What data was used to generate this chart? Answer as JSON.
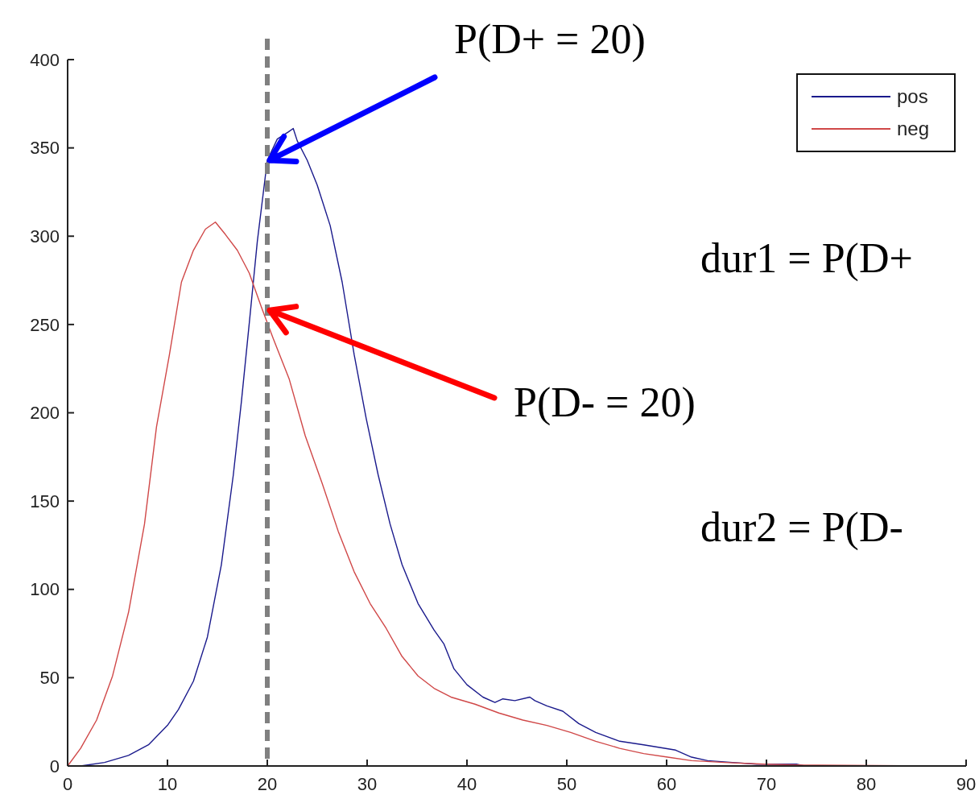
{
  "chart_data": {
    "type": "line",
    "xlim": [
      0,
      90
    ],
    "xticks": [
      0,
      10,
      20,
      30,
      40,
      50,
      60,
      70,
      80,
      90
    ],
    "ylim": [
      0,
      400
    ],
    "yticks": [
      0,
      50,
      100,
      150,
      200,
      250,
      300,
      350,
      400
    ],
    "grid": false,
    "legend": "top right",
    "marker": "none",
    "line_style": "solid",
    "series": [
      {
        "name": "pos",
        "color": "#1a1a8c",
        "x": [
          0,
          1.3,
          3.7,
          6.1,
          8.1,
          10,
          11.1,
          12.6,
          14,
          15.4,
          16.6,
          17.4,
          18.2,
          19,
          20,
          21,
          22.1,
          22.6,
          23,
          24,
          25,
          26.3,
          27.5,
          28.7,
          29.9,
          31.1,
          32.3,
          33.5,
          35.1,
          36.7,
          37.7,
          38.7,
          40,
          41.6,
          42.8,
          43.6,
          44.8,
          46.3,
          46.8,
          48,
          49.6,
          51.2,
          52.9,
          55.3,
          57.7,
          60.9,
          62.5,
          64.1,
          66.6,
          69,
          73,
          73.8,
          86.7
        ],
        "values": [
          0,
          0,
          2,
          6,
          12,
          23,
          32,
          48,
          73,
          114,
          165,
          206,
          251,
          297,
          343,
          355,
          359,
          361,
          354,
          343,
          329,
          306,
          274,
          233,
          197,
          165,
          137,
          114,
          92,
          77,
          69,
          55,
          46,
          39,
          36,
          38,
          37,
          39,
          37,
          34,
          31,
          24,
          19,
          14,
          12,
          9,
          5,
          3,
          2,
          1,
          1,
          0,
          0
        ]
      },
      {
        "name": "neg",
        "color": "#d04848",
        "x": [
          0,
          1.3,
          2.9,
          4.5,
          6.1,
          7.7,
          8.9,
          10.2,
          11.4,
          12.6,
          13.8,
          14.8,
          15.8,
          17,
          18.2,
          19.4,
          20.6,
          22.2,
          23.8,
          25.5,
          27.1,
          28.7,
          30.3,
          31.9,
          33.5,
          35.1,
          36.7,
          38.4,
          40.8,
          43.2,
          45.6,
          48,
          50.4,
          52.9,
          55.3,
          57.7,
          60.1,
          62.5,
          65.8,
          69.8,
          73.8,
          86.7
        ],
        "values": [
          0,
          10,
          26,
          51,
          87,
          137,
          192,
          233,
          274,
          292,
          304,
          308,
          301,
          292,
          279,
          260,
          242,
          219,
          187,
          160,
          133,
          110,
          92,
          78,
          62,
          51,
          44,
          39,
          35,
          30,
          26,
          23,
          19,
          14,
          10,
          7,
          5,
          3,
          2,
          1,
          0.5,
          0
        ]
      }
    ],
    "ref_lines": [
      {
        "axis": "x",
        "value": 20,
        "color": "#808080",
        "line_style": "dashed"
      }
    ],
    "annotations": [
      {
        "text": "P(D+ = 20)",
        "x": 20,
        "y": 343
      },
      {
        "text": "P(D- = 20)",
        "x": 20,
        "y": 258
      },
      "dur1 = P(D+",
      "dur2 = P(D-"
    ]
  }
}
